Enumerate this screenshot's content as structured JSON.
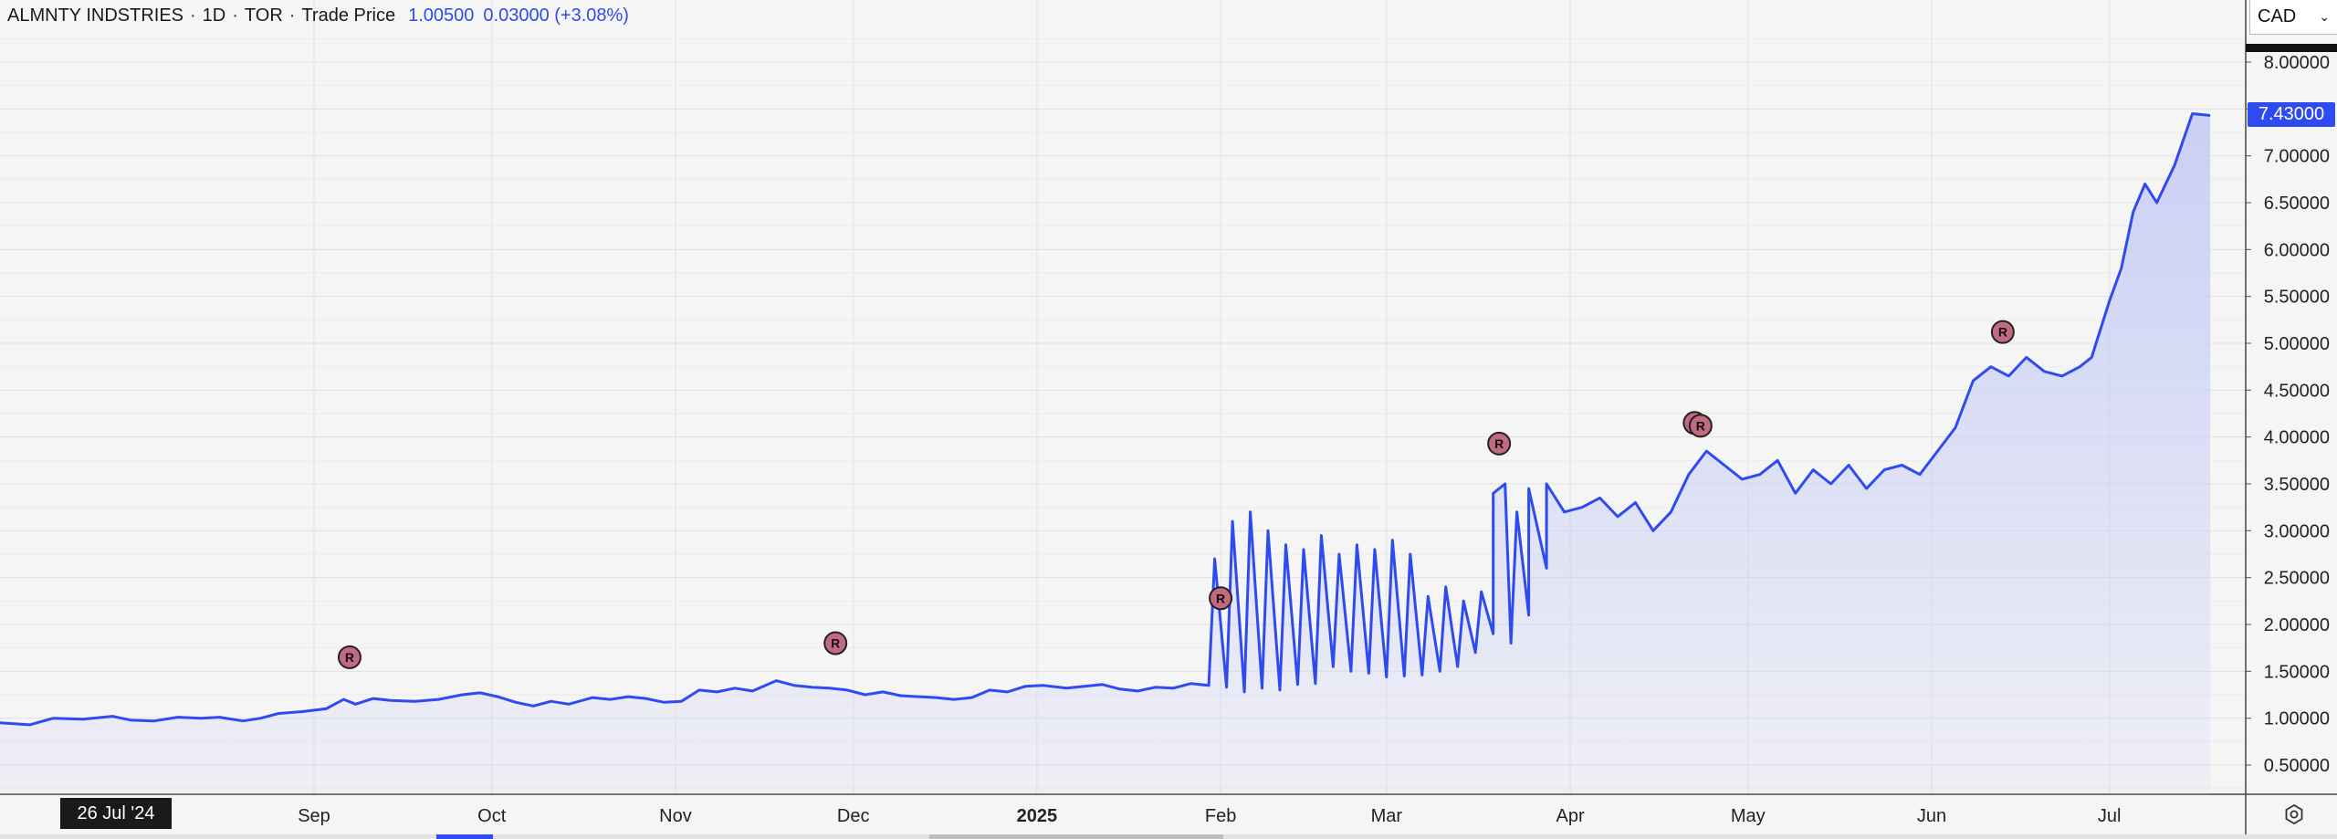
{
  "legend": {
    "symbol": "ALMNTY INDSTRIES",
    "interval": "1D",
    "exchange": "TOR",
    "price_type": "Trade Price",
    "value": "1.00500",
    "change": "0.03000 (+3.08%)",
    "separator": "·"
  },
  "currency_select": {
    "value": "CAD",
    "chevron": "⌄"
  },
  "last_price_label": "7.43000",
  "crosshair_date_label": "26 Jul '24",
  "settings_icon": "gear-icon",
  "colors": {
    "line": "#2e4bf0",
    "fill": "#c8cdf5",
    "marker": "#c26a82",
    "grid": "#e2e2e2"
  },
  "chart_data": {
    "type": "area",
    "title": "",
    "xlabel": "",
    "ylabel": "",
    "ylim": [
      0.3,
      8.3
    ],
    "grid": true,
    "y_ticks": [
      "0.50000",
      "1.00000",
      "1.50000",
      "2.00000",
      "2.50000",
      "3.00000",
      "3.50000",
      "4.00000",
      "4.50000",
      "5.00000",
      "5.50000",
      "6.00000",
      "6.50000",
      "7.00000",
      "7.50000",
      "8.00000"
    ],
    "x_tick_labels": [
      {
        "label": "Sep",
        "date": "2024-09-01",
        "bold": false
      },
      {
        "label": "Oct",
        "date": "2024-10-01",
        "bold": false
      },
      {
        "label": "Nov",
        "date": "2024-11-01",
        "bold": false
      },
      {
        "label": "Dec",
        "date": "2024-12-01",
        "bold": false
      },
      {
        "label": "2025",
        "date": "2025-01-01",
        "bold": true
      },
      {
        "label": "Feb",
        "date": "2025-02-01",
        "bold": false
      },
      {
        "label": "Mar",
        "date": "2025-03-01",
        "bold": false
      },
      {
        "label": "Apr",
        "date": "2025-04-01",
        "bold": false
      },
      {
        "label": "May",
        "date": "2025-05-01",
        "bold": false
      },
      {
        "label": "Jun",
        "date": "2025-06-01",
        "bold": false
      },
      {
        "label": "Jul",
        "date": "2025-07-01",
        "bold": false
      }
    ],
    "x_range": [
      "2024-07-10",
      "2025-07-24"
    ],
    "series": [
      {
        "points": [
          [
            "2024-07-10",
            0.95
          ],
          [
            "2024-07-15",
            0.93
          ],
          [
            "2024-07-19",
            1.0
          ],
          [
            "2024-07-24",
            0.99
          ],
          [
            "2024-07-29",
            1.02
          ],
          [
            "2024-08-01",
            0.98
          ],
          [
            "2024-08-05",
            0.97
          ],
          [
            "2024-08-09",
            1.01
          ],
          [
            "2024-08-13",
            1.0
          ],
          [
            "2024-08-16",
            1.01
          ],
          [
            "2024-08-20",
            0.97
          ],
          [
            "2024-08-23",
            1.0
          ],
          [
            "2024-08-26",
            1.05
          ],
          [
            "2024-08-30",
            1.07
          ],
          [
            "2024-09-03",
            1.1
          ],
          [
            "2024-09-06",
            1.2
          ],
          [
            "2024-09-08",
            1.15
          ],
          [
            "2024-09-11",
            1.21
          ],
          [
            "2024-09-14",
            1.19
          ],
          [
            "2024-09-18",
            1.18
          ],
          [
            "2024-09-22",
            1.2
          ],
          [
            "2024-09-26",
            1.25
          ],
          [
            "2024-09-29",
            1.27
          ],
          [
            "2024-10-02",
            1.23
          ],
          [
            "2024-10-05",
            1.17
          ],
          [
            "2024-10-08",
            1.13
          ],
          [
            "2024-10-11",
            1.18
          ],
          [
            "2024-10-14",
            1.15
          ],
          [
            "2024-10-18",
            1.22
          ],
          [
            "2024-10-21",
            1.2
          ],
          [
            "2024-10-24",
            1.23
          ],
          [
            "2024-10-27",
            1.21
          ],
          [
            "2024-10-30",
            1.17
          ],
          [
            "2024-11-02",
            1.18
          ],
          [
            "2024-11-05",
            1.3
          ],
          [
            "2024-11-08",
            1.28
          ],
          [
            "2024-11-11",
            1.32
          ],
          [
            "2024-11-14",
            1.29
          ],
          [
            "2024-11-18",
            1.4
          ],
          [
            "2024-11-21",
            1.35
          ],
          [
            "2024-11-24",
            1.33
          ],
          [
            "2024-11-27",
            1.32
          ],
          [
            "2024-11-30",
            1.3
          ],
          [
            "2024-12-03",
            1.25
          ],
          [
            "2024-12-06",
            1.28
          ],
          [
            "2024-12-09",
            1.24
          ],
          [
            "2024-12-12",
            1.23
          ],
          [
            "2024-12-15",
            1.22
          ],
          [
            "2024-12-18",
            1.2
          ],
          [
            "2024-12-21",
            1.22
          ],
          [
            "2024-12-24",
            1.3
          ],
          [
            "2024-12-27",
            1.28
          ],
          [
            "2024-12-30",
            1.34
          ],
          [
            "2025-01-02",
            1.35
          ],
          [
            "2025-01-06",
            1.32
          ],
          [
            "2025-01-09",
            1.34
          ],
          [
            "2025-01-12",
            1.36
          ],
          [
            "2025-01-15",
            1.31
          ],
          [
            "2025-01-18",
            1.29
          ],
          [
            "2025-01-21",
            1.33
          ],
          [
            "2025-01-24",
            1.32
          ],
          [
            "2025-01-27",
            1.37
          ],
          [
            "2025-01-30",
            1.35
          ],
          [
            "2025-02-02",
            1.33
          ],
          [
            "2025-02-05",
            1.28
          ],
          [
            "2025-02-08",
            1.32
          ],
          [
            "2025-02-11",
            1.3
          ],
          [
            "2025-02-14",
            1.36
          ],
          [
            "2025-02-17",
            1.37
          ],
          [
            "2025-02-20",
            1.55
          ],
          [
            "2025-02-23",
            1.5
          ],
          [
            "2025-02-26",
            1.48
          ],
          [
            "2025-03-01",
            1.44
          ],
          [
            "2025-03-04",
            1.45
          ],
          [
            "2025-03-07",
            1.46
          ],
          [
            "2025-03-10",
            1.5
          ],
          [
            "2025-03-13",
            1.55
          ],
          [
            "2025-03-16",
            1.7
          ],
          [
            "2025-03-19",
            1.9
          ],
          [
            "2025-03-22",
            1.8
          ],
          [
            "2025-03-25",
            2.1
          ],
          [
            "2025-03-28",
            2.6
          ],
          [
            "2025-01-31",
            2.7
          ],
          [
            "2025-02-03",
            3.1
          ],
          [
            "2025-02-06",
            3.2
          ],
          [
            "2025-02-09",
            3.0
          ],
          [
            "2025-02-12",
            2.85
          ],
          [
            "2025-02-15",
            2.8
          ],
          [
            "2025-02-18",
            2.95
          ],
          [
            "2025-02-21",
            2.75
          ],
          [
            "2025-02-24",
            2.85
          ],
          [
            "2025-02-27",
            2.8
          ],
          [
            "2025-03-02",
            2.9
          ],
          [
            "2025-03-05",
            2.75
          ],
          [
            "2025-03-08",
            2.3
          ],
          [
            "2025-03-11",
            2.4
          ],
          [
            "2025-03-14",
            2.25
          ],
          [
            "2025-03-17",
            2.35
          ],
          [
            "2025-03-19",
            3.4
          ],
          [
            "2025-03-21",
            3.5
          ],
          [
            "2025-03-23",
            3.2
          ],
          [
            "2025-03-25",
            3.45
          ],
          [
            "2025-03-28",
            3.5
          ],
          [
            "2025-03-31",
            3.2
          ],
          [
            "2025-04-03",
            3.25
          ],
          [
            "2025-04-06",
            3.35
          ],
          [
            "2025-04-09",
            3.15
          ],
          [
            "2025-04-12",
            3.3
          ],
          [
            "2025-04-15",
            3.0
          ],
          [
            "2025-04-18",
            3.2
          ],
          [
            "2025-04-21",
            3.6
          ],
          [
            "2025-04-24",
            3.85
          ],
          [
            "2025-04-27",
            3.7
          ],
          [
            "2025-04-30",
            3.55
          ],
          [
            "2025-05-03",
            3.6
          ],
          [
            "2025-05-06",
            3.75
          ],
          [
            "2025-05-09",
            3.4
          ],
          [
            "2025-05-12",
            3.65
          ],
          [
            "2025-05-15",
            3.5
          ],
          [
            "2025-05-18",
            3.7
          ],
          [
            "2025-05-21",
            3.45
          ],
          [
            "2025-05-24",
            3.65
          ],
          [
            "2025-05-27",
            3.7
          ],
          [
            "2025-05-30",
            3.6
          ],
          [
            "2025-06-02",
            3.85
          ],
          [
            "2025-06-05",
            4.1
          ],
          [
            "2025-06-08",
            4.6
          ],
          [
            "2025-06-11",
            4.75
          ],
          [
            "2025-06-14",
            4.65
          ],
          [
            "2025-06-17",
            4.85
          ],
          [
            "2025-06-20",
            4.7
          ],
          [
            "2025-06-23",
            4.65
          ],
          [
            "2025-06-26",
            4.75
          ],
          [
            "2025-06-28",
            4.85
          ],
          [
            "2025-07-01",
            5.45
          ],
          [
            "2025-07-03",
            5.8
          ],
          [
            "2025-07-05",
            6.4
          ],
          [
            "2025-07-07",
            6.7
          ],
          [
            "2025-07-09",
            6.5
          ],
          [
            "2025-07-12",
            6.9
          ],
          [
            "2025-07-15",
            7.45
          ],
          [
            "2025-07-18",
            7.43
          ]
        ]
      }
    ],
    "markers": [
      {
        "date": "2024-09-07",
        "value": 1.65,
        "label": "R"
      },
      {
        "date": "2024-11-28",
        "value": 1.8,
        "label": "R"
      },
      {
        "date": "2025-02-01",
        "value": 2.28,
        "label": "R"
      },
      {
        "date": "2025-03-20",
        "value": 3.93,
        "label": "R"
      },
      {
        "date": "2025-04-22",
        "value": 4.15,
        "label": "R"
      },
      {
        "date": "2025-04-23",
        "value": 4.12,
        "label": "R"
      },
      {
        "date": "2025-06-13",
        "value": 5.12,
        "label": "R"
      }
    ]
  }
}
